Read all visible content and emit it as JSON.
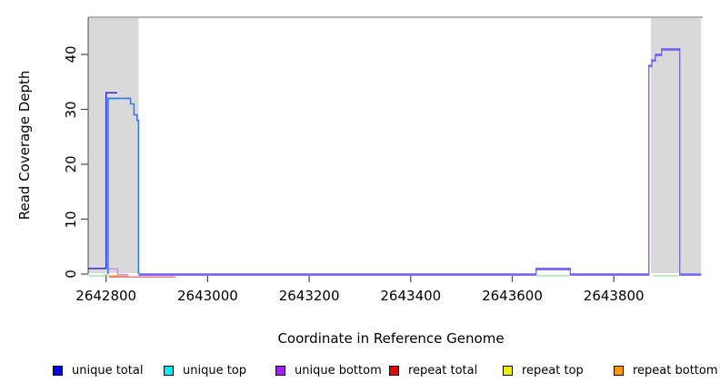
{
  "figure": {
    "y_axis": {
      "title": "Read Coverage Depth",
      "ticks": [
        0,
        10,
        20,
        30,
        40
      ]
    },
    "x_axis": {
      "title": "Coordinate in Reference Genome",
      "ticks": [
        2642800,
        2643000,
        2643200,
        2643400,
        2643600,
        2643800
      ]
    },
    "shade_color": "#D9D9D9",
    "shaded_regions": [
      {
        "from": 2642765,
        "to": 2642864
      },
      {
        "from": 2643873,
        "to": 2643972
      }
    ],
    "legend": [
      {
        "label": "unique total",
        "color": "#0000EE"
      },
      {
        "label": "unique top",
        "color": "#00EEEE"
      },
      {
        "label": "unique bottom",
        "color": "#A020F0"
      },
      {
        "label": "repeat total",
        "color": "#EE0000"
      },
      {
        "label": "repeat top",
        "color": "#EEEE00"
      },
      {
        "label": "repeat bottom",
        "color": "#FF9900"
      }
    ]
  },
  "chart_data": {
    "type": "line",
    "title": "",
    "xlabel": "Coordinate in Reference Genome",
    "ylabel": "Read Coverage Depth",
    "xlim": [
      2642765,
      2643972
    ],
    "ylim": [
      0,
      46
    ],
    "grid": false,
    "legend_position": "bottom",
    "series": [
      {
        "name": "unique total",
        "color": "#0000EE",
        "step_points": [
          [
            2642765,
            1
          ],
          [
            2642800,
            33
          ],
          [
            2642822,
            32
          ],
          [
            2642848,
            31
          ],
          [
            2642855,
            29
          ],
          [
            2642861,
            28
          ],
          [
            2642864,
            0
          ],
          [
            2643647,
            1
          ],
          [
            2643714,
            0
          ],
          [
            2643869,
            38
          ],
          [
            2643875,
            39
          ],
          [
            2643882,
            40
          ],
          [
            2643894,
            41
          ],
          [
            2643930,
            0
          ],
          [
            2643972,
            0
          ]
        ]
      },
      {
        "name": "unique top",
        "color": "#00EEEE",
        "step_points": [
          [
            2642765,
            0
          ],
          [
            2642803,
            32
          ],
          [
            2642848,
            31
          ],
          [
            2642855,
            29
          ],
          [
            2642861,
            28
          ],
          [
            2642864,
            0
          ],
          [
            2643972,
            0
          ]
        ]
      },
      {
        "name": "unique bottom",
        "color": "#A020F0",
        "step_points": [
          [
            2642765,
            0
          ],
          [
            2642800,
            1
          ],
          [
            2642822,
            0
          ],
          [
            2643647,
            1
          ],
          [
            2643714,
            0
          ],
          [
            2643869,
            38
          ],
          [
            2643875,
            39
          ],
          [
            2643882,
            40
          ],
          [
            2643894,
            41
          ],
          [
            2643930,
            0
          ],
          [
            2643972,
            0
          ]
        ]
      },
      {
        "name": "repeat total",
        "color": "#EE0000",
        "step_points": [
          [
            2642765,
            0
          ],
          [
            2643972,
            0
          ]
        ]
      },
      {
        "name": "repeat top",
        "color": "#EEEE00",
        "step_points": [
          [
            2642765,
            0
          ],
          [
            2643972,
            0
          ]
        ]
      },
      {
        "name": "repeat bottom",
        "color": "#FF9900",
        "step_points": [
          [
            2642765,
            0
          ],
          [
            2643972,
            0
          ]
        ]
      }
    ],
    "render_segments": [
      {
        "name": "baseline-green-left",
        "color": "#98DB98",
        "w": 1.2,
        "dy": 2,
        "points": [
          [
            2642765,
            0
          ],
          [
            2642806,
            0
          ]
        ]
      },
      {
        "name": "baseline-green-bump",
        "color": "#98DB98",
        "w": 1.2,
        "dy": 2,
        "points": [
          [
            2643649,
            0
          ],
          [
            2643712,
            0
          ]
        ]
      },
      {
        "name": "baseline-green-right",
        "color": "#98DB98",
        "w": 1.2,
        "dy": 2,
        "points": [
          [
            2643877,
            0
          ],
          [
            2643928,
            0
          ]
        ]
      },
      {
        "name": "baseline-orange",
        "color": "#FFA030",
        "w": 1.3,
        "dy": 2,
        "points": [
          [
            2642806,
            0
          ],
          [
            2642844,
            0
          ]
        ]
      },
      {
        "name": "baseline-red",
        "color": "#E84B5F",
        "w": 1.2,
        "dy": 3.2,
        "points": [
          [
            2642806,
            0
          ],
          [
            2642937,
            0
          ]
        ]
      },
      {
        "name": "unique-bottom-left",
        "color": "#C08CF0",
        "w": 1.3,
        "dy": 0.5,
        "points": [
          [
            2642806,
            1
          ],
          [
            2642823,
            1
          ],
          [
            2642823,
            0
          ],
          [
            2642844,
            0
          ]
        ]
      },
      {
        "name": "baseline-blue",
        "color": "#4646E8",
        "w": 1.3,
        "dy": 0,
        "points": [
          [
            2642864,
            0
          ],
          [
            2643647,
            0
          ],
          [
            2643647,
            1
          ],
          [
            2643714,
            1
          ],
          [
            2643714,
            0
          ],
          [
            2643869,
            0
          ],
          [
            2643869,
            38
          ],
          [
            2643875,
            38
          ],
          [
            2643875,
            39
          ],
          [
            2643882,
            39
          ],
          [
            2643882,
            40
          ],
          [
            2643894,
            40
          ],
          [
            2643894,
            41
          ],
          [
            2643930,
            41
          ],
          [
            2643930,
            0
          ],
          [
            2643972,
            0
          ]
        ]
      },
      {
        "name": "baseline-violet",
        "color": "#8A6CFF",
        "w": 1.4,
        "dy": 1.3,
        "points": [
          [
            2642864,
            0
          ],
          [
            2643647,
            0
          ],
          [
            2643647,
            1
          ],
          [
            2643714,
            1
          ],
          [
            2643714,
            0
          ],
          [
            2643869,
            0
          ],
          [
            2643869,
            38
          ],
          [
            2643875,
            38
          ],
          [
            2643875,
            39
          ],
          [
            2643882,
            39
          ],
          [
            2643882,
            40
          ],
          [
            2643894,
            40
          ],
          [
            2643894,
            41
          ],
          [
            2643930,
            41
          ],
          [
            2643930,
            0
          ],
          [
            2643972,
            0
          ]
        ]
      },
      {
        "name": "unique-total-left",
        "color": "#2B2BD5",
        "w": 1.5,
        "dy": 0,
        "points": [
          [
            2642765,
            1
          ],
          [
            2642800,
            1
          ],
          [
            2642800,
            33
          ],
          [
            2642822,
            33
          ]
        ]
      },
      {
        "name": "unique-top-ledge",
        "color": "#7FE6E6",
        "w": 1.3,
        "dy": 1.2,
        "points": [
          [
            2642803,
            32
          ],
          [
            2642822,
            32
          ]
        ]
      },
      {
        "name": "left-peak-steps",
        "color": "#3A78F0",
        "w": 1.6,
        "dy": 0,
        "points": [
          [
            2642804,
            0
          ],
          [
            2642804,
            32
          ],
          [
            2642848,
            32
          ],
          [
            2642848,
            31
          ],
          [
            2642855,
            31
          ],
          [
            2642855,
            29
          ],
          [
            2642861,
            29
          ],
          [
            2642861,
            28
          ],
          [
            2642864,
            28
          ],
          [
            2642864,
            0
          ]
        ]
      }
    ]
  }
}
